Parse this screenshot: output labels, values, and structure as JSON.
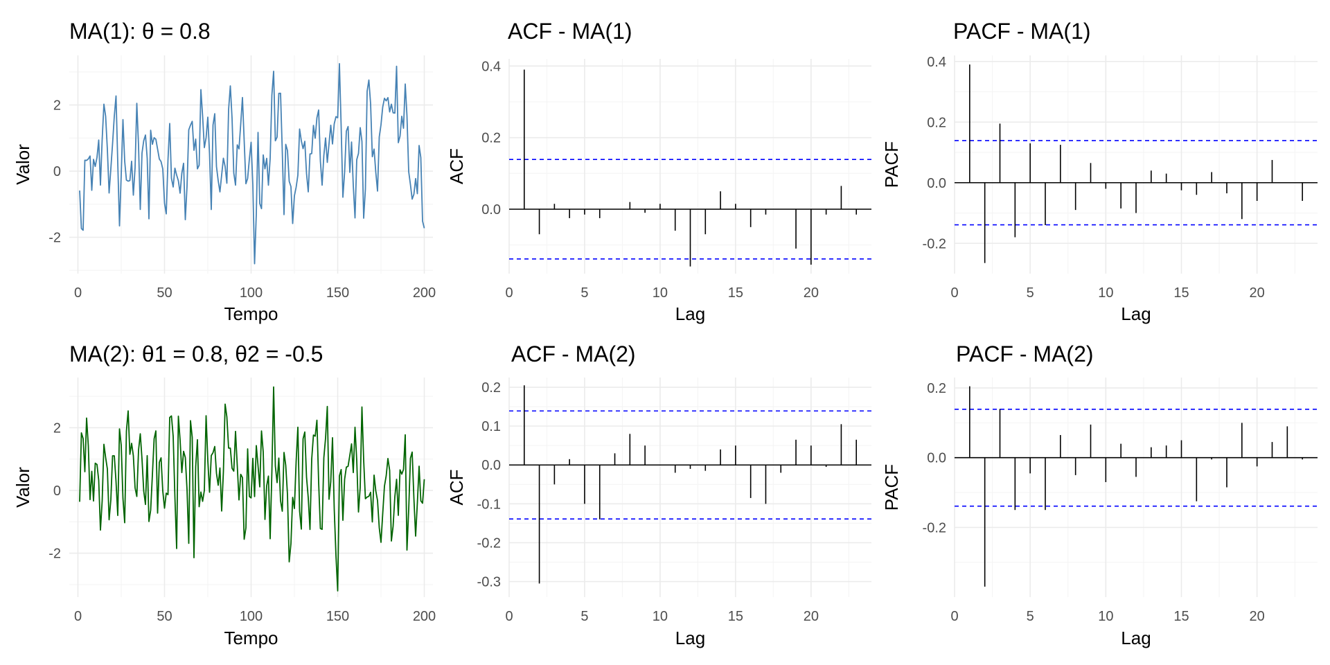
{
  "colors": {
    "series_ma1": "#4682B4",
    "series_ma2": "#006400",
    "bars": "#000000",
    "confidence_bounds": "#0000FF",
    "grid_major": "#EBEBEB",
    "grid_minor": "#F5F5F5"
  },
  "chart_data": [
    {
      "id": "ts1",
      "type": "line",
      "title": "MA(1): θ = 0.8",
      "xlabel": "Tempo",
      "ylabel": "Valor",
      "xlim": [
        -5,
        205
      ],
      "ylim": [
        -3.1,
        3.5
      ],
      "xticks": [
        0,
        50,
        100,
        150,
        200
      ],
      "xtick_labels": [
        "0",
        "50",
        "100",
        "150",
        "200"
      ],
      "yticks": [
        -2,
        0,
        2
      ],
      "ytick_labels": [
        "-2",
        "0",
        "2"
      ],
      "grid": true,
      "color": "#4682B4",
      "seed": 11,
      "n": 200,
      "y_extremes": {
        "min": -2.8,
        "max": 3.25
      }
    },
    {
      "id": "acf1",
      "type": "bar",
      "title": "ACF - MA(1)",
      "xlabel": "Lag",
      "ylabel": "ACF",
      "xlim": [
        0,
        24
      ],
      "ylim": [
        -0.18,
        0.42
      ],
      "xticks": [
        0,
        5,
        10,
        15,
        20
      ],
      "xtick_labels": [
        "0",
        "5",
        "10",
        "15",
        "20"
      ],
      "yticks": [
        0.0,
        0.2,
        0.4
      ],
      "ytick_labels": [
        "0.0",
        "0.2",
        "0.4"
      ],
      "grid": true,
      "conf_bound": 0.139,
      "lags": [
        1,
        2,
        3,
        4,
        5,
        6,
        7,
        8,
        9,
        10,
        11,
        12,
        13,
        14,
        15,
        16,
        17,
        18,
        19,
        20,
        21,
        22,
        23
      ],
      "values": [
        0.39,
        -0.07,
        0.015,
        -0.025,
        -0.015,
        -0.025,
        0.0,
        0.02,
        -0.01,
        0.015,
        -0.06,
        -0.16,
        -0.07,
        0.05,
        0.015,
        -0.05,
        -0.015,
        0.0,
        -0.11,
        -0.155,
        -0.015,
        0.065,
        -0.015
      ]
    },
    {
      "id": "pacf1",
      "type": "bar",
      "title": "PACF - MA(1)",
      "xlabel": "Lag",
      "ylabel": "PACF",
      "xlim": [
        0,
        24
      ],
      "ylim": [
        -0.3,
        0.42
      ],
      "xticks": [
        0,
        5,
        10,
        15,
        20
      ],
      "xtick_labels": [
        "0",
        "5",
        "10",
        "15",
        "20"
      ],
      "yticks": [
        -0.2,
        0.0,
        0.2,
        0.4
      ],
      "ytick_labels": [
        "-0.2",
        "0.0",
        "0.2",
        "0.4"
      ],
      "grid": true,
      "conf_bound": 0.139,
      "lags": [
        1,
        2,
        3,
        4,
        5,
        6,
        7,
        8,
        9,
        10,
        11,
        12,
        13,
        14,
        15,
        16,
        17,
        18,
        19,
        20,
        21,
        22,
        23
      ],
      "values": [
        0.39,
        -0.265,
        0.195,
        -0.18,
        0.13,
        -0.14,
        0.125,
        -0.09,
        0.065,
        -0.02,
        -0.085,
        -0.1,
        0.04,
        0.03,
        -0.025,
        -0.04,
        0.035,
        -0.035,
        -0.12,
        -0.06,
        0.075,
        0.0,
        -0.06
      ]
    },
    {
      "id": "ts2",
      "type": "line",
      "title": "MA(2): θ1 = 0.8, θ2 = -0.5",
      "xlabel": "Tempo",
      "ylabel": "Valor",
      "xlim": [
        -5,
        205
      ],
      "ylim": [
        -3.4,
        3.6
      ],
      "xticks": [
        0,
        50,
        100,
        150,
        200
      ],
      "xtick_labels": [
        "0",
        "50",
        "100",
        "150",
        "200"
      ],
      "yticks": [
        -2,
        0,
        2
      ],
      "ytick_labels": [
        "-2",
        "0",
        "2"
      ],
      "grid": true,
      "color": "#006400",
      "seed": 23,
      "n": 200,
      "y_extremes": {
        "min": -3.2,
        "max": 3.3
      }
    },
    {
      "id": "acf2",
      "type": "bar",
      "title": "ACF - MA(2)",
      "xlabel": "Lag",
      "ylabel": "ACF",
      "xlim": [
        0,
        24
      ],
      "ylim": [
        -0.34,
        0.225
      ],
      "xticks": [
        0,
        5,
        10,
        15,
        20
      ],
      "xtick_labels": [
        "0",
        "5",
        "10",
        "15",
        "20"
      ],
      "yticks": [
        -0.3,
        -0.2,
        -0.1,
        0.0,
        0.1,
        0.2
      ],
      "ytick_labels": [
        "-0.3",
        "-0.2",
        "-0.1",
        "0.0",
        "0.1",
        "0.2"
      ],
      "grid": true,
      "conf_bound": 0.139,
      "lags": [
        1,
        2,
        3,
        4,
        5,
        6,
        7,
        8,
        9,
        10,
        11,
        12,
        13,
        14,
        15,
        16,
        17,
        18,
        19,
        20,
        21,
        22,
        23
      ],
      "values": [
        0.205,
        -0.305,
        -0.05,
        0.015,
        -0.1,
        -0.14,
        0.03,
        0.08,
        0.05,
        0.0,
        -0.02,
        -0.01,
        -0.015,
        0.04,
        0.05,
        -0.085,
        -0.1,
        -0.02,
        0.065,
        0.05,
        -0.005,
        0.105,
        0.065
      ]
    },
    {
      "id": "pacf2",
      "type": "bar",
      "title": "PACF - MA(2)",
      "xlabel": "Lag",
      "ylabel": "PACF",
      "xlim": [
        0,
        24
      ],
      "ylim": [
        -0.4,
        0.23
      ],
      "xticks": [
        0,
        5,
        10,
        15,
        20
      ],
      "xtick_labels": [
        "0",
        "5",
        "10",
        "15",
        "20"
      ],
      "yticks": [
        -0.2,
        0.0,
        0.2
      ],
      "ytick_labels": [
        "-0.2",
        "0.0",
        "0.2"
      ],
      "grid": true,
      "conf_bound": 0.139,
      "lags": [
        1,
        2,
        3,
        4,
        5,
        6,
        7,
        8,
        9,
        10,
        11,
        12,
        13,
        14,
        15,
        16,
        17,
        18,
        19,
        20,
        21,
        22,
        23
      ],
      "values": [
        0.205,
        -0.37,
        0.14,
        -0.15,
        -0.045,
        -0.15,
        0.065,
        -0.05,
        0.095,
        -0.07,
        0.04,
        -0.055,
        0.03,
        0.035,
        0.05,
        -0.125,
        -0.005,
        -0.085,
        0.1,
        -0.025,
        0.045,
        0.09,
        -0.005
      ]
    }
  ]
}
